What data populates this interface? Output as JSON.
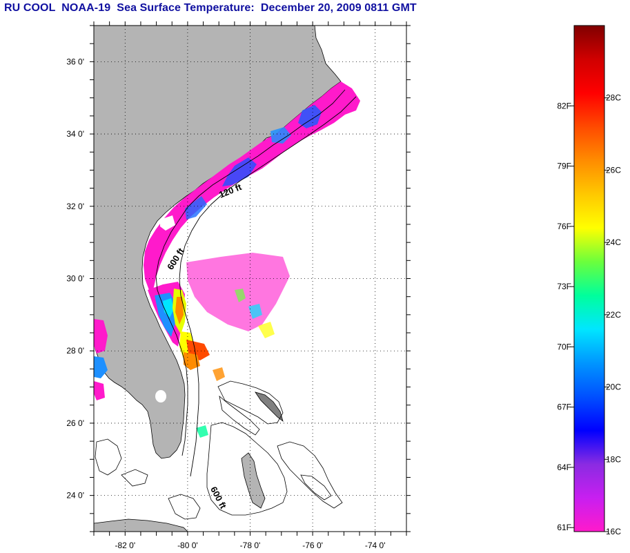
{
  "title": "RU COOL  NOAA-19  Sea Surface Temperature:  December 20, 2009 0811 GMT",
  "map": {
    "lon_range": [
      -83,
      -73
    ],
    "lat_range": [
      23,
      37
    ],
    "lat_ticks": [
      {
        "value": 36,
        "label": "36 0'"
      },
      {
        "value": 34,
        "label": "34 0'"
      },
      {
        "value": 32,
        "label": "32 0'"
      },
      {
        "value": 30,
        "label": "30 0'"
      },
      {
        "value": 28,
        "label": "28 0'"
      },
      {
        "value": 26,
        "label": "26 0'"
      },
      {
        "value": 24,
        "label": "24 0'"
      }
    ],
    "lon_ticks": [
      {
        "value": -82,
        "label": "-82 0'"
      },
      {
        "value": -80,
        "label": "-80 0'"
      },
      {
        "value": -78,
        "label": "-78 0'"
      },
      {
        "value": -76,
        "label": "-76 0'"
      },
      {
        "value": -74,
        "label": "-74 0'"
      }
    ],
    "contour_labels": [
      {
        "text": "120 ft",
        "lon": -78.6,
        "lat": 32.35
      },
      {
        "text": "600 ft",
        "lon": -80.3,
        "lat": 30.5
      },
      {
        "text": "600 ft",
        "lon": -79.1,
        "lat": 23.9
      }
    ],
    "colors": {
      "land": "#b4b4b4",
      "ocean": "#ffffff",
      "coast": "#000000",
      "grid": "#000000"
    }
  },
  "colorbar": {
    "min_c": 16,
    "max_c": 30,
    "c_labels": [
      {
        "value": 28,
        "label": "28C"
      },
      {
        "value": 26,
        "label": "26C"
      },
      {
        "value": 24,
        "label": "24C"
      },
      {
        "value": 22,
        "label": "22C"
      },
      {
        "value": 20,
        "label": "20C"
      },
      {
        "value": 18,
        "label": "18C"
      },
      {
        "value": 16,
        "label": "16C"
      }
    ],
    "f_labels": [
      {
        "value": 82,
        "label": "82F"
      },
      {
        "value": 79,
        "label": "79F"
      },
      {
        "value": 76,
        "label": "76F"
      },
      {
        "value": 73,
        "label": "73F"
      },
      {
        "value": 70,
        "label": "70F"
      },
      {
        "value": 67,
        "label": "67F"
      },
      {
        "value": 64,
        "label": "64F"
      },
      {
        "value": 61,
        "label": "61F"
      }
    ],
    "stops": [
      "#ff1acb",
      "#c81ff0",
      "#8a2be2",
      "#0000ff",
      "#0050ff",
      "#0096ff",
      "#00e6ff",
      "#00ff9c",
      "#6bff3c",
      "#ffff00",
      "#ffc800",
      "#ff8c00",
      "#ff4a00",
      "#ff0000",
      "#d00000",
      "#800000"
    ]
  }
}
